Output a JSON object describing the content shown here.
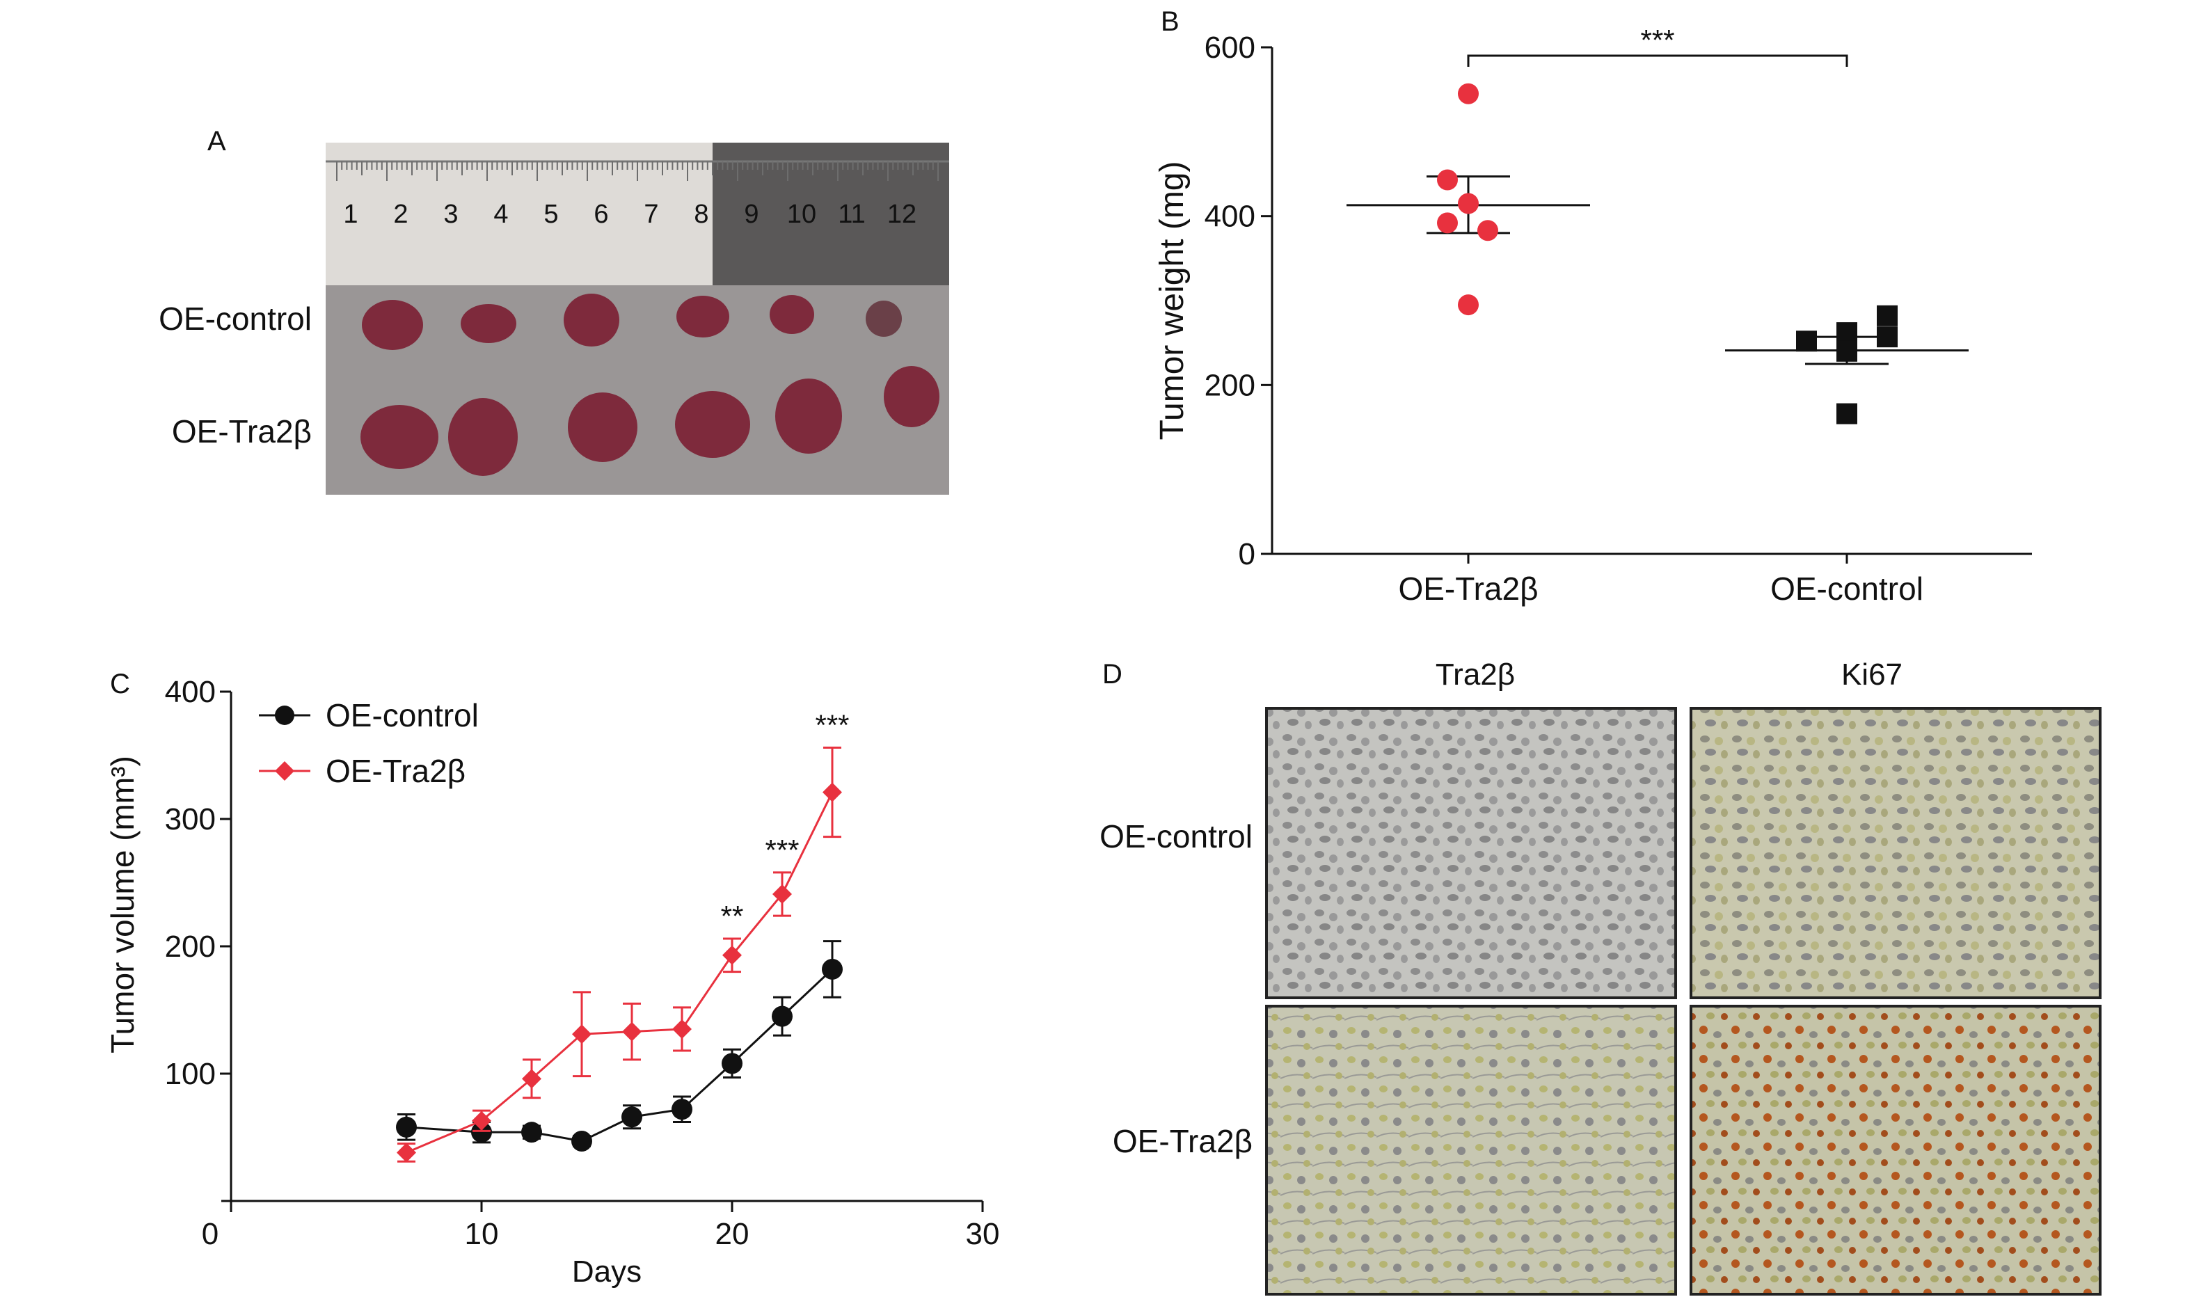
{
  "panels": {
    "a": {
      "letter": "A",
      "row_labels": [
        "OE-control",
        "OE-Tra2β"
      ],
      "ruler_numbers": [
        "1",
        "2",
        "3",
        "4",
        "5",
        "6",
        "7",
        "8",
        "9",
        "10",
        "11",
        "12"
      ]
    },
    "b": {
      "letter": "B"
    },
    "c": {
      "letter": "C"
    },
    "d": {
      "letter": "D",
      "col_labels": [
        "Tra2β",
        "Ki67"
      ],
      "row_labels": [
        "OE-control",
        "OE-Tra2β"
      ]
    }
  },
  "chart_data": [
    {
      "panel": "B",
      "type": "scatter",
      "ylabel": "Tumor weight (mg)",
      "ylim": [
        0,
        600
      ],
      "yticks": [
        0,
        200,
        400,
        600
      ],
      "categories": [
        "OE-Tra2β",
        "OE-control"
      ],
      "series": [
        {
          "name": "OE-Tra2β",
          "color": "#e8313e",
          "marker": "circle",
          "values": [
            545,
            443,
            415,
            392,
            383,
            295
          ],
          "mean": 413,
          "sem_low": 380,
          "sem_high": 447
        },
        {
          "name": "OE-control",
          "color": "#111111",
          "marker": "square",
          "values": [
            282,
            262,
            257,
            252,
            240,
            166
          ],
          "mean": 241,
          "sem_low": 225,
          "sem_high": 257
        }
      ],
      "significance": "***"
    },
    {
      "panel": "C",
      "type": "line",
      "xlabel": "Days",
      "ylabel": "Tumor volume (mm³)",
      "xlim": [
        0,
        30
      ],
      "ylim": [
        0,
        400
      ],
      "xticks": [
        0,
        10,
        20,
        30
      ],
      "yticks": [
        100,
        200,
        300,
        400
      ],
      "legend_position": "top-left",
      "series": [
        {
          "name": "OE-control",
          "color": "#111111",
          "marker": "circle",
          "x": [
            7,
            10,
            12,
            14,
            16,
            18,
            20,
            22,
            24
          ],
          "values": [
            58,
            54,
            54,
            47,
            66,
            72,
            108,
            145,
            182
          ],
          "err": [
            10,
            8,
            5,
            4,
            9,
            10,
            11,
            15,
            22
          ]
        },
        {
          "name": "OE-Tra2β",
          "color": "#e8313e",
          "marker": "diamond",
          "x": [
            7,
            10,
            12,
            14,
            16,
            18,
            20,
            22,
            24
          ],
          "values": [
            38,
            63,
            96,
            131,
            133,
            135,
            193,
            241,
            321
          ],
          "err": [
            7,
            8,
            15,
            33,
            22,
            17,
            13,
            17,
            35
          ]
        }
      ],
      "annotations": [
        {
          "x": 20,
          "text": "**"
        },
        {
          "x": 22,
          "text": "***"
        },
        {
          "x": 24,
          "text": "***"
        }
      ]
    }
  ]
}
